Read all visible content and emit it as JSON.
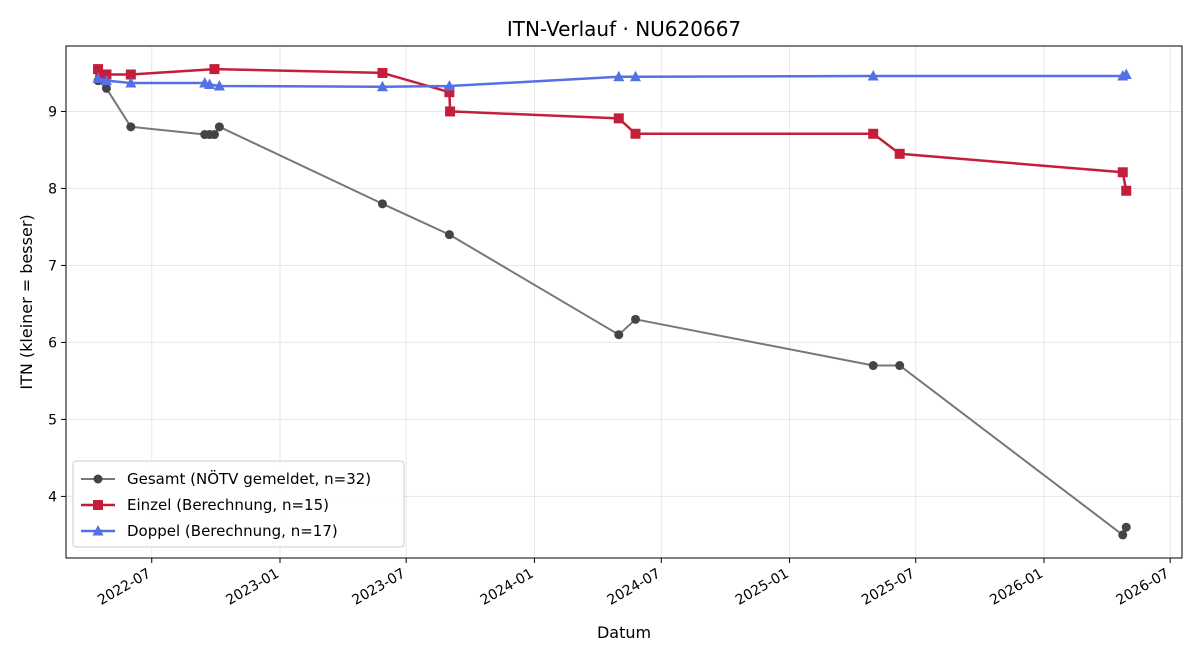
{
  "chart_data": {
    "type": "line",
    "title": "ITN-Verlauf · NU620667",
    "xlabel": "Datum",
    "ylabel": "ITN  (kleiner = besser)",
    "x_axis": "date",
    "xlim": [
      "2022-02-28",
      "2026-07-18"
    ],
    "ylim": [
      3.2,
      9.85
    ],
    "xticks": [
      "2022-07-01",
      "2023-01-01",
      "2023-07-01",
      "2024-01-01",
      "2024-07-01",
      "2025-01-01",
      "2025-07-01",
      "2026-01-01",
      "2026-07-01"
    ],
    "xtick_labels": [
      "2022-07",
      "2023-01",
      "2023-07",
      "2024-01",
      "2024-07",
      "2025-01",
      "2025-07",
      "2026-01",
      "2026-07"
    ],
    "yticks": [
      4,
      5,
      6,
      7,
      8,
      9
    ],
    "grid": true,
    "legend_position": "lower-left",
    "series": [
      {
        "name": "Gesamt (NÖTV gemeldet, n=32)",
        "color": "#777777",
        "marker_color": "#444444",
        "marker": "circle",
        "points": [
          [
            "2022-04-15",
            9.4
          ],
          [
            "2022-04-27",
            9.3
          ],
          [
            "2022-06-01",
            8.8
          ],
          [
            "2022-09-15",
            8.7
          ],
          [
            "2022-09-22",
            8.7
          ],
          [
            "2022-09-29",
            8.7
          ],
          [
            "2022-10-06",
            8.8
          ],
          [
            "2023-05-28",
            7.8
          ],
          [
            "2023-09-01",
            7.4
          ],
          [
            "2024-05-01",
            6.1
          ],
          [
            "2024-05-25",
            6.3
          ],
          [
            "2025-05-01",
            5.7
          ],
          [
            "2025-06-08",
            5.7
          ],
          [
            "2026-04-24",
            3.5
          ],
          [
            "2026-04-29",
            3.6
          ]
        ]
      },
      {
        "name": "Einzel (Berechnung, n=15)",
        "color": "#c41e3a",
        "marker": "square",
        "points": [
          [
            "2022-04-15",
            9.55
          ],
          [
            "2022-04-18",
            9.45
          ],
          [
            "2022-04-27",
            9.48
          ],
          [
            "2022-06-01",
            9.48
          ],
          [
            "2022-09-29",
            9.55
          ],
          [
            "2023-05-28",
            9.5
          ],
          [
            "2023-09-01",
            9.25
          ],
          [
            "2023-09-02",
            9.0
          ],
          [
            "2024-05-01",
            8.91
          ],
          [
            "2024-05-25",
            8.71
          ],
          [
            "2025-05-01",
            8.71
          ],
          [
            "2025-06-08",
            8.45
          ],
          [
            "2026-04-24",
            8.21
          ],
          [
            "2026-04-29",
            7.97
          ]
        ]
      },
      {
        "name": "Doppel (Berechnung, n=17)",
        "color": "#5470e6",
        "marker": "triangle",
        "points": [
          [
            "2022-04-15",
            9.43
          ],
          [
            "2022-04-27",
            9.4
          ],
          [
            "2022-06-01",
            9.37
          ],
          [
            "2022-09-15",
            9.37
          ],
          [
            "2022-09-22",
            9.35
          ],
          [
            "2022-10-06",
            9.33
          ],
          [
            "2023-05-28",
            9.32
          ],
          [
            "2023-09-01",
            9.33
          ],
          [
            "2024-05-01",
            9.45
          ],
          [
            "2024-05-25",
            9.45
          ],
          [
            "2025-05-01",
            9.46
          ],
          [
            "2026-04-24",
            9.46
          ],
          [
            "2026-04-29",
            9.48
          ]
        ]
      }
    ]
  }
}
